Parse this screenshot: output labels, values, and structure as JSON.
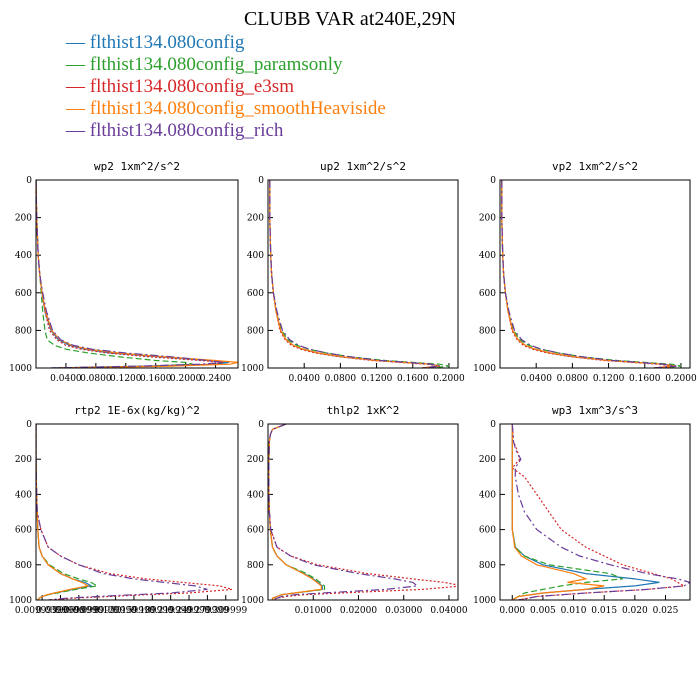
{
  "title": "CLUBB VAR at240E,29N",
  "colors": {
    "blue": "#1f77b4",
    "green": "#2ca02c",
    "red": "#d62728",
    "orange": "#ff7f0e",
    "purple": "#6a3d9a"
  },
  "legend": [
    {
      "label": "flthist134.080config",
      "color": "#1f77b4"
    },
    {
      "label": "flthist134.080config_paramsonly",
      "color": "#2ca02c"
    },
    {
      "label": "flthist134.080config_e3sm",
      "color": "#d62728"
    },
    {
      "label": "flthist134.080config_smoothHeaviside",
      "color": "#ff7f0e"
    },
    {
      "label": "flthist134.080config_rich",
      "color": "#6a3d9a"
    }
  ],
  "chart_data": [
    {
      "type": "line",
      "title": "wp2  1xm^2/s^2",
      "xlim": [
        0,
        0.27
      ],
      "ylim": [
        1000,
        0
      ],
      "xticks": [
        "0.0400",
        "0.0800",
        "0.1200",
        "0.1600",
        "0.2000",
        "0.2400"
      ],
      "xtick_values": [
        0.04,
        0.08,
        0.12,
        0.16,
        0.2,
        0.24
      ],
      "yticks": [
        0,
        200,
        400,
        600,
        800,
        1000
      ],
      "y": [
        0,
        200,
        400,
        500,
        600,
        700,
        800,
        850,
        880,
        900,
        920,
        940,
        960,
        970,
        980,
        990,
        1000
      ],
      "series": [
        {
          "color": "#1f77b4",
          "x": [
            0,
            0.001,
            0.003,
            0.005,
            0.008,
            0.012,
            0.02,
            0.03,
            0.045,
            0.065,
            0.1,
            0.16,
            0.23,
            0.258,
            0.24,
            0.15,
            0.02
          ]
        },
        {
          "color": "#2ca02c",
          "x": [
            0,
            0.001,
            0.003,
            0.005,
            0.007,
            0.009,
            0.012,
            0.015,
            0.025,
            0.04,
            0.07,
            0.11,
            0.16,
            0.2,
            0.21,
            0.15,
            0.03
          ]
        },
        {
          "color": "#d62728",
          "x": [
            0,
            0.001,
            0.003,
            0.005,
            0.008,
            0.012,
            0.018,
            0.028,
            0.04,
            0.06,
            0.095,
            0.15,
            0.22,
            0.25,
            0.235,
            0.16,
            0.02
          ]
        },
        {
          "color": "#ff7f0e",
          "x": [
            0,
            0.001,
            0.003,
            0.005,
            0.008,
            0.013,
            0.021,
            0.032,
            0.048,
            0.07,
            0.11,
            0.17,
            0.24,
            0.27,
            0.26,
            0.18,
            0.03
          ]
        },
        {
          "color": "#6a3d9a",
          "x": [
            0,
            0.001,
            0.003,
            0.005,
            0.009,
            0.014,
            0.022,
            0.033,
            0.05,
            0.075,
            0.12,
            0.18,
            0.23,
            0.25,
            0.22,
            0.14,
            0.02
          ]
        }
      ]
    },
    {
      "type": "line",
      "title": "up2  1xm^2/s^2",
      "xlim": [
        0,
        0.21
      ],
      "ylim": [
        1000,
        0
      ],
      "xticks": [
        "0.0400",
        "0.0800",
        "0.1200",
        "0.1600",
        "0.2000"
      ],
      "xtick_values": [
        0.04,
        0.08,
        0.12,
        0.16,
        0.2
      ],
      "yticks": [
        0,
        200,
        400,
        600,
        800,
        1000
      ],
      "y": [
        0,
        200,
        400,
        500,
        600,
        700,
        800,
        850,
        880,
        900,
        920,
        940,
        960,
        970,
        980,
        990,
        1000
      ],
      "series": [
        {
          "color": "#1f77b4",
          "x": [
            0.002,
            0.002,
            0.003,
            0.004,
            0.006,
            0.009,
            0.014,
            0.02,
            0.028,
            0.038,
            0.055,
            0.08,
            0.12,
            0.15,
            0.18,
            0.19,
            0.17
          ]
        },
        {
          "color": "#2ca02c",
          "x": [
            0.002,
            0.002,
            0.003,
            0.004,
            0.006,
            0.009,
            0.015,
            0.022,
            0.032,
            0.045,
            0.065,
            0.09,
            0.13,
            0.16,
            0.19,
            0.2,
            0.18
          ]
        },
        {
          "color": "#d62728",
          "x": [
            0.002,
            0.002,
            0.003,
            0.004,
            0.006,
            0.009,
            0.013,
            0.019,
            0.026,
            0.036,
            0.052,
            0.078,
            0.115,
            0.145,
            0.175,
            0.19,
            0.17
          ]
        },
        {
          "color": "#ff7f0e",
          "x": [
            0.002,
            0.002,
            0.003,
            0.004,
            0.006,
            0.009,
            0.014,
            0.02,
            0.028,
            0.039,
            0.056,
            0.082,
            0.12,
            0.15,
            0.18,
            0.19,
            0.17
          ]
        },
        {
          "color": "#6a3d9a",
          "x": [
            0.002,
            0.002,
            0.003,
            0.004,
            0.006,
            0.01,
            0.016,
            0.024,
            0.034,
            0.046,
            0.065,
            0.09,
            0.125,
            0.155,
            0.18,
            0.19,
            0.17
          ]
        }
      ]
    },
    {
      "type": "line",
      "title": "vp2  1xm^2/s^2",
      "xlim": [
        0,
        0.21
      ],
      "ylim": [
        1000,
        0
      ],
      "xticks": [
        "0.0400",
        "0.0800",
        "0.1200",
        "0.1600",
        "0.2000"
      ],
      "xtick_values": [
        0.04,
        0.08,
        0.12,
        0.16,
        0.2
      ],
      "yticks": [
        0,
        200,
        400,
        600,
        800,
        1000
      ],
      "y": [
        0,
        200,
        400,
        500,
        600,
        700,
        800,
        850,
        880,
        900,
        920,
        940,
        960,
        970,
        980,
        990,
        1000
      ],
      "series": [
        {
          "color": "#1f77b4",
          "x": [
            0.002,
            0.002,
            0.003,
            0.004,
            0.006,
            0.009,
            0.014,
            0.02,
            0.028,
            0.038,
            0.055,
            0.08,
            0.12,
            0.15,
            0.18,
            0.195,
            0.17
          ]
        },
        {
          "color": "#2ca02c",
          "x": [
            0.002,
            0.002,
            0.003,
            0.004,
            0.006,
            0.009,
            0.015,
            0.022,
            0.032,
            0.045,
            0.065,
            0.09,
            0.13,
            0.16,
            0.19,
            0.2,
            0.18
          ]
        },
        {
          "color": "#d62728",
          "x": [
            0.002,
            0.002,
            0.003,
            0.004,
            0.006,
            0.009,
            0.013,
            0.019,
            0.026,
            0.036,
            0.052,
            0.078,
            0.115,
            0.145,
            0.175,
            0.19,
            0.17
          ]
        },
        {
          "color": "#ff7f0e",
          "x": [
            0.002,
            0.002,
            0.003,
            0.004,
            0.006,
            0.009,
            0.014,
            0.02,
            0.028,
            0.039,
            0.056,
            0.082,
            0.12,
            0.15,
            0.18,
            0.195,
            0.17
          ]
        },
        {
          "color": "#6a3d9a",
          "x": [
            0.002,
            0.002,
            0.003,
            0.004,
            0.006,
            0.01,
            0.016,
            0.024,
            0.034,
            0.046,
            0.065,
            0.09,
            0.125,
            0.155,
            0.18,
            0.195,
            0.17
          ]
        }
      ]
    },
    {
      "type": "line",
      "title": "rtp2  1E-6x(kg/kg)^2",
      "xlim": [
        0,
        0.33
      ],
      "ylim": [
        1000,
        0
      ],
      "xticks": [
        "0.00999990",
        "0.0399990",
        "0.0699990",
        "0.0999990",
        "0.129999",
        "0.159999",
        "0.189999",
        "0.219999",
        "0.249999",
        "0.279999",
        "0.309999"
      ],
      "xtick_values": [
        0.0099999,
        0.039999,
        0.069999,
        0.099999,
        0.129999,
        0.159999,
        0.189999,
        0.219999,
        0.249999,
        0.279999,
        0.309999
      ],
      "yticks": [
        0,
        200,
        400,
        600,
        800,
        1000
      ],
      "y": [
        0,
        200,
        400,
        500,
        600,
        700,
        750,
        800,
        850,
        880,
        900,
        920,
        940,
        960,
        970,
        980,
        990,
        1000
      ],
      "series": [
        {
          "color": "#1f77b4",
          "x": [
            0,
            0,
            0.001,
            0.002,
            0.003,
            0.005,
            0.01,
            0.02,
            0.04,
            0.06,
            0.08,
            0.09,
            0.06,
            0.03,
            0.02,
            0.01,
            0.005,
            0.003
          ]
        },
        {
          "color": "#2ca02c",
          "x": [
            0,
            0,
            0.001,
            0.002,
            0.003,
            0.005,
            0.01,
            0.022,
            0.045,
            0.07,
            0.09,
            0.1,
            0.065,
            0.035,
            0.02,
            0.01,
            0.005,
            0.003
          ]
        },
        {
          "color": "#d62728",
          "x": [
            0,
            0,
            0.001,
            0.002,
            0.008,
            0.02,
            0.04,
            0.07,
            0.12,
            0.18,
            0.24,
            0.3,
            0.32,
            0.25,
            0.18,
            0.12,
            0.06,
            0.02
          ]
        },
        {
          "color": "#ff7f0e",
          "x": [
            0,
            0,
            0.001,
            0.002,
            0.003,
            0.005,
            0.01,
            0.02,
            0.04,
            0.06,
            0.075,
            0.085,
            0.055,
            0.03,
            0.018,
            0.01,
            0.005,
            0.003
          ]
        },
        {
          "color": "#6a3d9a",
          "x": [
            0,
            0,
            0.001,
            0.002,
            0.008,
            0.02,
            0.04,
            0.07,
            0.11,
            0.16,
            0.21,
            0.26,
            0.28,
            0.22,
            0.16,
            0.1,
            0.05,
            0.02
          ]
        }
      ]
    },
    {
      "type": "line",
      "title": "thlp2  1xK^2",
      "xlim": [
        0,
        0.042
      ],
      "ylim": [
        1000,
        0
      ],
      "xticks": [
        "0.01000",
        "0.02000",
        "0.03000",
        "0.04000"
      ],
      "xtick_values": [
        0.01,
        0.02,
        0.03,
        0.04
      ],
      "yticks": [
        0,
        200,
        400,
        600,
        800,
        1000
      ],
      "y": [
        0,
        10,
        30,
        60,
        100,
        200,
        400,
        500,
        600,
        700,
        750,
        800,
        850,
        880,
        900,
        920,
        940,
        960,
        970,
        980,
        990,
        1000
      ],
      "series": [
        {
          "color": "#1f77b4",
          "x": [
            0.004,
            0.003,
            0.001,
            0.0005,
            0.0003,
            0.0002,
            0.0002,
            0.0003,
            0.0005,
            0.001,
            0.002,
            0.004,
            0.008,
            0.01,
            0.011,
            0.012,
            0.012,
            0.006,
            0.003,
            0.002,
            0.001,
            0.001
          ]
        },
        {
          "color": "#2ca02c",
          "x": [
            0.004,
            0.003,
            0.001,
            0.0005,
            0.0003,
            0.0002,
            0.0002,
            0.0003,
            0.0005,
            0.001,
            0.002,
            0.004,
            0.0085,
            0.0105,
            0.0115,
            0.0125,
            0.0125,
            0.006,
            0.003,
            0.002,
            0.001,
            0.001
          ]
        },
        {
          "color": "#d62728",
          "x": [
            0.004,
            0.003,
            0.001,
            0.0005,
            0.0003,
            0.0002,
            0.0002,
            0.0003,
            0.0006,
            0.002,
            0.005,
            0.011,
            0.022,
            0.032,
            0.039,
            0.043,
            0.034,
            0.016,
            0.008,
            0.004,
            0.002,
            0.001
          ]
        },
        {
          "color": "#ff7f0e",
          "x": [
            0.004,
            0.003,
            0.001,
            0.0005,
            0.0003,
            0.0002,
            0.0002,
            0.0003,
            0.0005,
            0.001,
            0.002,
            0.004,
            0.0078,
            0.0098,
            0.0108,
            0.0118,
            0.0118,
            0.0058,
            0.003,
            0.002,
            0.001,
            0.001
          ]
        },
        {
          "color": "#6a3d9a",
          "x": [
            0.004,
            0.003,
            0.001,
            0.0005,
            0.0003,
            0.0002,
            0.0002,
            0.0003,
            0.0006,
            0.002,
            0.005,
            0.01,
            0.02,
            0.028,
            0.032,
            0.033,
            0.026,
            0.012,
            0.006,
            0.003,
            0.002,
            0.001
          ]
        }
      ]
    },
    {
      "type": "line",
      "title": "wp3  1xm^3/s^3",
      "xlim": [
        -0.002,
        0.029
      ],
      "ylim": [
        1000,
        0
      ],
      "xticks": [
        "0.000",
        "0.005",
        "0.010",
        "0.015",
        "0.020",
        "0.025"
      ],
      "xtick_values": [
        0,
        0.005,
        0.01,
        0.015,
        0.02,
        0.025
      ],
      "yticks": [
        0,
        200,
        400,
        600,
        800,
        1000
      ],
      "y": [
        0,
        100,
        150,
        200,
        250,
        300,
        400,
        500,
        600,
        700,
        750,
        800,
        850,
        880,
        900,
        920,
        940,
        960,
        980,
        1000
      ],
      "series": [
        {
          "color": "#1f77b4",
          "x": [
            0,
            0,
            0,
            0,
            0,
            0,
            0,
            0,
            0,
            0.0005,
            0.002,
            0.005,
            0.012,
            0.02,
            0.024,
            0.02,
            0.012,
            0.005,
            0.001,
            0
          ]
        },
        {
          "color": "#2ca02c",
          "x": [
            0,
            0,
            0,
            0,
            0,
            0,
            0,
            0,
            0,
            0.0005,
            0.002,
            0.006,
            0.016,
            0.018,
            0.012,
            0.008,
            0.005,
            0.002,
            0.001,
            0
          ]
        },
        {
          "color": "#d62728",
          "x": [
            0,
            0.0002,
            0.0008,
            0.0012,
            0,
            0.002,
            0.004,
            0.006,
            0.008,
            0.012,
            0.015,
            0.018,
            0.023,
            0.026,
            0.027,
            0.028,
            0.022,
            0.012,
            0.004,
            0.001
          ]
        },
        {
          "color": "#ff7f0e",
          "x": [
            0,
            0,
            0,
            0,
            0,
            0,
            0,
            0,
            0,
            0.0004,
            0.0015,
            0.004,
            0.01,
            0.012,
            0.009,
            0.015,
            0.012,
            0.005,
            0.001,
            0
          ]
        },
        {
          "color": "#6a3d9a",
          "x": [
            0,
            0.0002,
            0.0006,
            0.0014,
            0.0005,
            0.0005,
            0.001,
            0.002,
            0.004,
            0.008,
            0.011,
            0.016,
            0.022,
            0.027,
            0.029,
            0.028,
            0.022,
            0.012,
            0.004,
            0.001
          ]
        }
      ]
    }
  ]
}
